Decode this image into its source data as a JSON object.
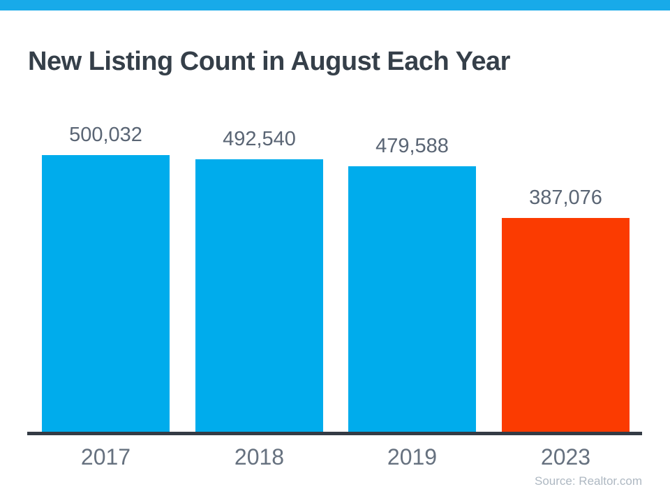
{
  "header": {
    "strip_color": "#18aae9",
    "title": "New Listing Count in August Each Year",
    "title_color": "#353f49"
  },
  "chart_data": {
    "type": "bar",
    "title": "New Listing Count in August Each Year",
    "categories": [
      "2017",
      "2018",
      "2019",
      "2023"
    ],
    "values": [
      500032,
      492540,
      479588,
      387076
    ],
    "value_labels": [
      "500,032",
      "492,540",
      "479,588",
      "387,076"
    ],
    "bar_colors": [
      "#00acec",
      "#00acec",
      "#00acec",
      "#fb3b01"
    ],
    "xlabel": "",
    "ylabel": "",
    "ylim": [
      0,
      520000
    ],
    "grid": false,
    "legend": "none",
    "axis_line_color": "#343b45",
    "value_label_color": "#5a6574",
    "category_label_color": "#66717f"
  },
  "footer": {
    "source_label": "Source: Realtor.com",
    "source_color": "#aeb8c2"
  }
}
